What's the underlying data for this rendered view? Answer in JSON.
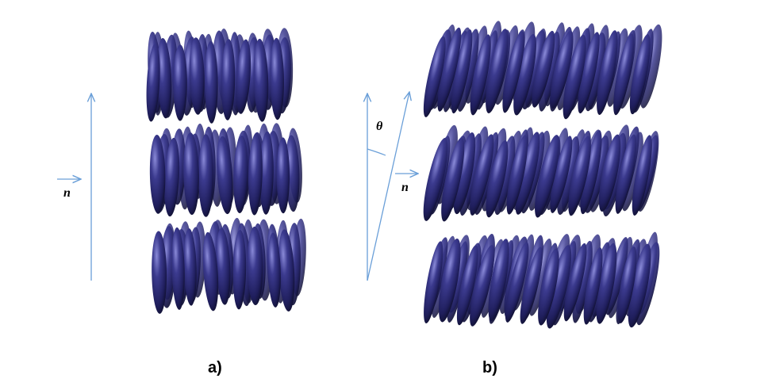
{
  "panels": [
    {
      "id": "a",
      "label": "a)",
      "vector_label": "n",
      "layers": 3,
      "tilt_deg": 0
    },
    {
      "id": "b",
      "label": "b)",
      "vector_label": "n",
      "angle_label": "θ",
      "layers": 3,
      "tilt_deg": 12
    }
  ],
  "colors": {
    "molecule": "#2b2a72",
    "molecule_light": "#6e6ec4",
    "molecule_dark": "#14143a",
    "axis": "#6a9fd8"
  }
}
